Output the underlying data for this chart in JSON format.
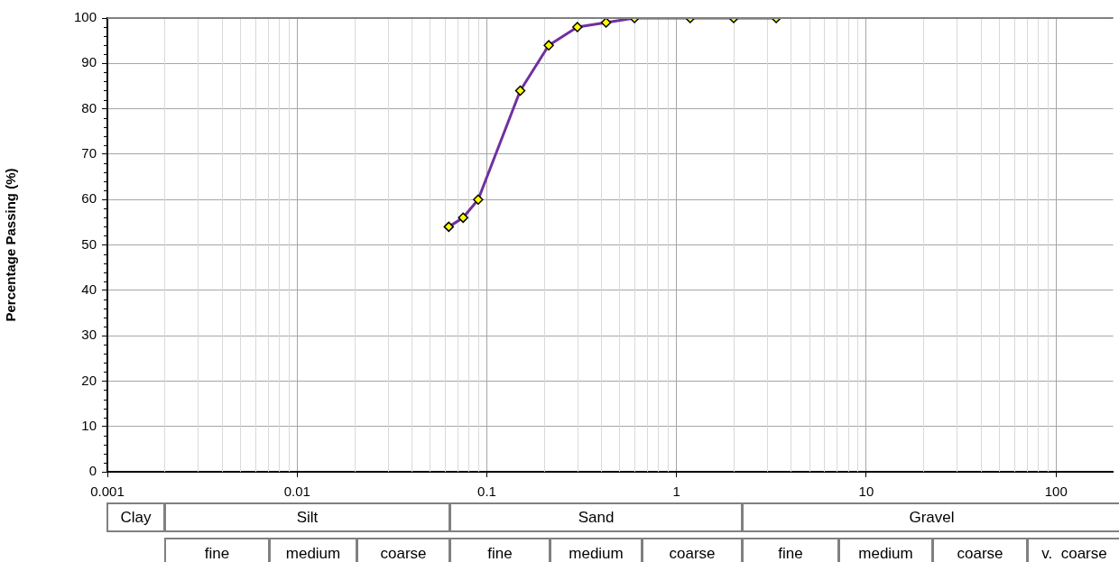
{
  "chart_data": {
    "type": "line",
    "ylabel": "Percentage Passing (%)",
    "x": [
      0.063,
      0.075,
      0.09,
      0.15,
      0.212,
      0.3,
      0.425,
      0.6,
      1.18,
      2,
      3.35
    ],
    "series": [
      {
        "color": "#7030a0",
        "values": [
          54,
          56,
          60,
          84,
          94,
          98,
          99,
          100,
          100,
          100,
          100
        ]
      }
    ],
    "xlim": [
      0.001,
      200
    ],
    "xticks": [
      0.001,
      0.01,
      0.1,
      1,
      10,
      100
    ],
    "ylim": [
      0,
      100
    ],
    "yticks": [
      0,
      10,
      20,
      30,
      40,
      50,
      60,
      70,
      80,
      90,
      100
    ],
    "log": "x",
    "grid": true,
    "legend": false,
    "marker": "diamond",
    "line_style": "solid",
    "annotations": [
      "Clay",
      "Silt",
      "Sand",
      "Gravel",
      "fine",
      "medium",
      "coarse",
      "fine",
      "medium",
      "coarse",
      "fine",
      "medium",
      "coarse",
      "v.  coarse"
    ]
  }
}
